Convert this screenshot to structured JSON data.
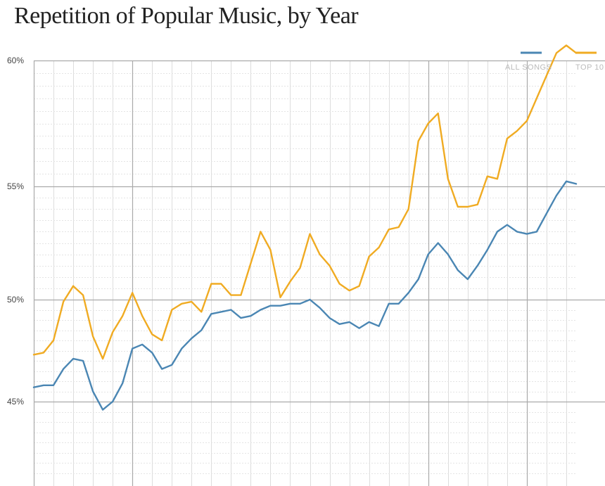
{
  "chart_data": {
    "type": "line",
    "title": "Repetition of Popular Music, by Year",
    "xlabel": "",
    "ylabel": "",
    "y_tick_labels": [
      "60%",
      "55%",
      "50%",
      "45%"
    ],
    "y_tick_values": [
      60,
      55,
      50,
      45
    ],
    "ylim": [
      41.5,
      60.2
    ],
    "grid": true,
    "legend_position": "top-right",
    "x": [
      0,
      1,
      2,
      3,
      4,
      5,
      6,
      7,
      8,
      9,
      10,
      11,
      12,
      13,
      14,
      15,
      16,
      17,
      18,
      19,
      20,
      21,
      22,
      23,
      24,
      25,
      26,
      27,
      28,
      29,
      30,
      31,
      32,
      33,
      34,
      35,
      36,
      37,
      38,
      39,
      40,
      41,
      42,
      43,
      44,
      45,
      46,
      47,
      48,
      49,
      50,
      51,
      52,
      53,
      54,
      55
    ],
    "series": [
      {
        "name": "ALL SONGS",
        "color": "#4a86b3",
        "values": [
          45.7,
          45.8,
          45.8,
          46.6,
          47.1,
          47.0,
          45.5,
          44.6,
          45.0,
          45.9,
          47.6,
          47.8,
          47.4,
          46.6,
          46.8,
          47.6,
          48.1,
          48.5,
          49.3,
          49.4,
          49.5,
          49.1,
          49.2,
          49.5,
          49.7,
          49.7,
          49.8,
          49.8,
          50.0,
          49.6,
          49.1,
          48.8,
          48.9,
          48.6,
          48.9,
          48.7,
          49.8,
          49.8,
          50.3,
          50.9,
          52.0,
          52.5,
          52.0,
          51.3,
          50.9,
          51.5,
          52.2,
          53.0,
          53.3,
          53.0,
          52.9,
          53.0,
          53.8,
          54.6,
          55.2,
          55.1
        ]
      },
      {
        "name": "TOP 10",
        "color": "#f0ab22",
        "values": [
          47.3,
          47.4,
          48.0,
          49.9,
          50.6,
          50.2,
          48.2,
          47.1,
          48.4,
          49.2,
          50.3,
          49.2,
          48.3,
          48.0,
          49.5,
          49.8,
          49.9,
          49.4,
          50.7,
          50.7,
          50.2,
          50.2,
          51.6,
          53.0,
          52.2,
          50.1,
          50.8,
          51.4,
          52.9,
          52.0,
          51.5,
          50.7,
          50.4,
          50.6,
          51.9,
          52.3,
          53.1,
          53.2,
          54.0,
          56.8,
          57.5,
          57.9,
          55.3,
          54.1,
          54.1,
          54.2,
          55.4,
          55.3,
          56.9,
          57.2,
          57.6,
          58.5,
          59.4,
          60.3,
          60.6,
          60.3
        ]
      }
    ]
  }
}
